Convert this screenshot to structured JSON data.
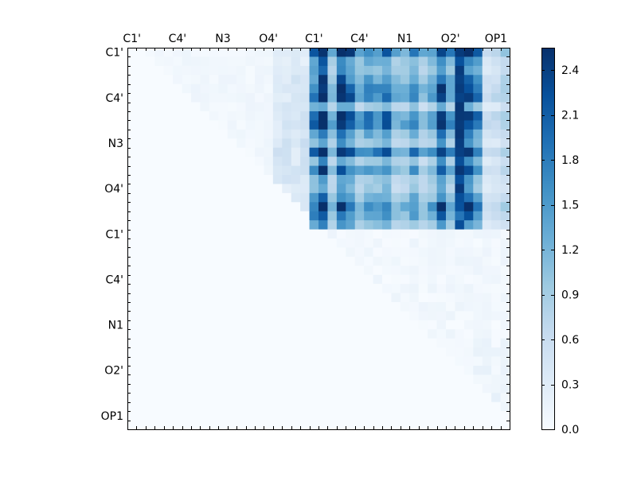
{
  "chart_data": {
    "type": "heatmap",
    "title": "",
    "xlabel": "",
    "ylabel": "",
    "grid_size": 42,
    "x_tick_labels": [
      "C1'",
      "C4'",
      "N3",
      "O4'",
      "C1'",
      "C4'",
      "N1",
      "O2'",
      "OP1"
    ],
    "y_tick_labels": [
      "C1'",
      "C4'",
      "N3",
      "O4'",
      "C1'",
      "C4'",
      "N1",
      "O2'",
      "OP1"
    ],
    "tick_positions": [
      0.5,
      5.5,
      10.5,
      15.5,
      20.5,
      25.5,
      30.5,
      35.5,
      40.5
    ],
    "x_tick_side": "top",
    "colorbar": {
      "min": 0.0,
      "max": 2.55,
      "colormap": "Blues",
      "tick_labels": [
        "0.0",
        "0.3",
        "0.6",
        "0.9",
        "1.2",
        "1.5",
        "1.8",
        "2.1",
        "2.4"
      ],
      "tick_values": [
        0.0,
        0.3,
        0.6,
        0.9,
        1.2,
        1.5,
        1.8,
        2.1,
        2.4
      ]
    },
    "blocks": [
      {
        "name": "upper-left (rows 0-19, cols 0-19)",
        "range": [
          0.0,
          0.9
        ],
        "typical": 0.08
      },
      {
        "name": "upper-right (rows 0-19, cols 20-41)",
        "range": [
          0.3,
          2.55
        ],
        "typical": 1.7
      },
      {
        "name": "lower-right (rows 20-41, cols 20-41)",
        "range": [
          0.0,
          0.4
        ],
        "typical": 0.08
      }
    ],
    "colormap_colors": [
      "#f7fbff",
      "#deebf7",
      "#c6dbef",
      "#9ecae1",
      "#6baed6",
      "#4292c6",
      "#2171b5",
      "#08519c",
      "#08306b"
    ]
  }
}
